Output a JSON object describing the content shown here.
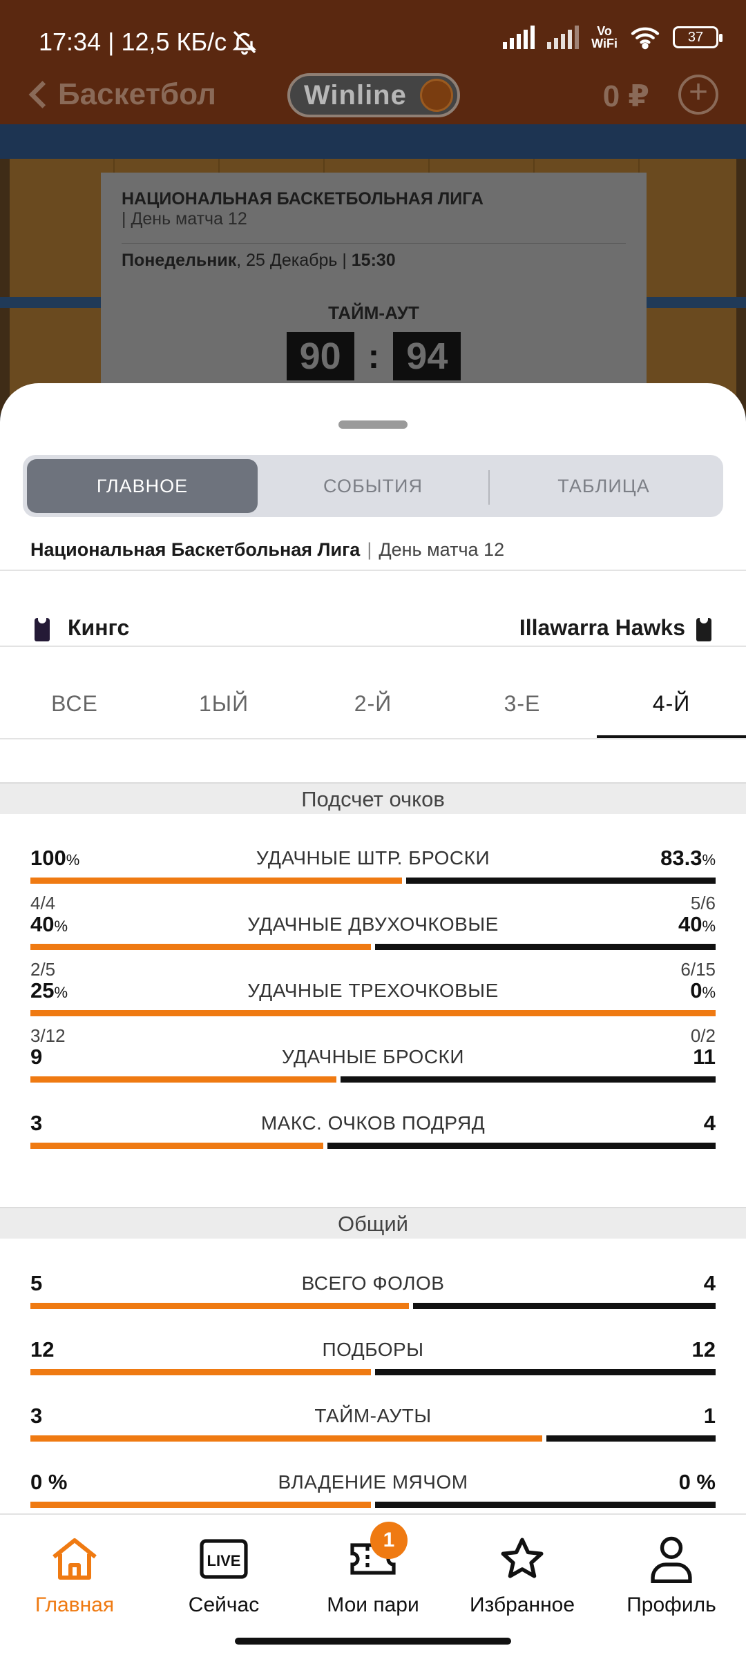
{
  "status": {
    "time_net": "17:34 | 12,5 КБ/с",
    "vowifi_top": "Vo",
    "vowifi_bottom": "WiFi",
    "battery": "37"
  },
  "appbar": {
    "title": "Баскетбол",
    "brand": "Winline",
    "balance": "0 ₽"
  },
  "match_card": {
    "league": "НАЦИОНАЛЬНАЯ БАСКЕТБОЛЬНАЯ ЛИГА",
    "day": "| День матча 12",
    "date_bold": "Понедельник",
    "date_rest": ", 25 Декабрь | ",
    "time": "15:30",
    "state": "ТАЙМ-АУТ",
    "home_score": "90",
    "away_score": "94"
  },
  "tabs": [
    "ГЛАВНОЕ",
    "СОБЫТИЯ",
    "ТАБЛИЦА"
  ],
  "breadcrumb": {
    "league": "Национальная Баскетбольная Лига",
    "sep": "|",
    "day": "День матча 12"
  },
  "teams": {
    "home": "Кингс",
    "away": "Illawarra Hawks"
  },
  "periods": [
    "ВСЕ",
    "1ЫЙ",
    "2-Й",
    "3-Е",
    "4-Й"
  ],
  "sections": {
    "scoring": {
      "title": "Подсчет очков",
      "stats": [
        {
          "title": "УДАЧНЫЕ ШТР. БРОСКИ",
          "left": "100",
          "left_unit": "%",
          "right": "83.3",
          "right_unit": "%",
          "left_sub": "4/4",
          "right_sub": "5/6",
          "share": 0.545
        },
        {
          "title": "УДАЧНЫЕ ДВУХОЧКОВЫЕ",
          "left": "40",
          "left_unit": "%",
          "right": "40",
          "right_unit": "%",
          "left_sub": "2/5",
          "right_sub": "6/15",
          "share": 0.5
        },
        {
          "title": "УДАЧНЫЕ ТРЕХОЧКОВЫЕ",
          "left": "25",
          "left_unit": "%",
          "right": "0",
          "right_unit": "%",
          "left_sub": "3/12",
          "right_sub": "0/2",
          "share": 1.0
        },
        {
          "title": "УДАЧНЫЕ БРОСКИ",
          "left": "9",
          "left_unit": "",
          "right": "11",
          "right_unit": "",
          "left_sub": "",
          "right_sub": "",
          "share": 0.45
        },
        {
          "title": "МАКС. ОЧКОВ ПОДРЯД",
          "left": "3",
          "left_unit": "",
          "right": "4",
          "right_unit": "",
          "left_sub": "",
          "right_sub": "",
          "share": 0.43
        }
      ]
    },
    "general": {
      "title": "Общий",
      "stats": [
        {
          "title": "ВСЕГО ФОЛОВ",
          "left": "5",
          "left_unit": "",
          "right": "4",
          "right_unit": "",
          "share": 0.555
        },
        {
          "title": "ПОДБОРЫ",
          "left": "12",
          "left_unit": "",
          "right": "12",
          "right_unit": "",
          "share": 0.5
        },
        {
          "title": "ТАЙМ-АУТЫ",
          "left": "3",
          "left_unit": "",
          "right": "1",
          "right_unit": "",
          "share": 0.75
        },
        {
          "title": "ВЛАДЕНИЕ МЯЧОМ",
          "left": "0 %",
          "left_unit": "",
          "right": "0 %",
          "right_unit": "",
          "share": 0.5
        }
      ]
    }
  },
  "nav": {
    "home": "Главная",
    "live": "Сейчас",
    "live_icon_text": "LIVE",
    "bets": "Мои пари",
    "bets_badge": "1",
    "fav": "Избранное",
    "profile": "Профиль"
  },
  "colors": {
    "accent": "#ef7a12",
    "dark_bar": "#111111"
  }
}
